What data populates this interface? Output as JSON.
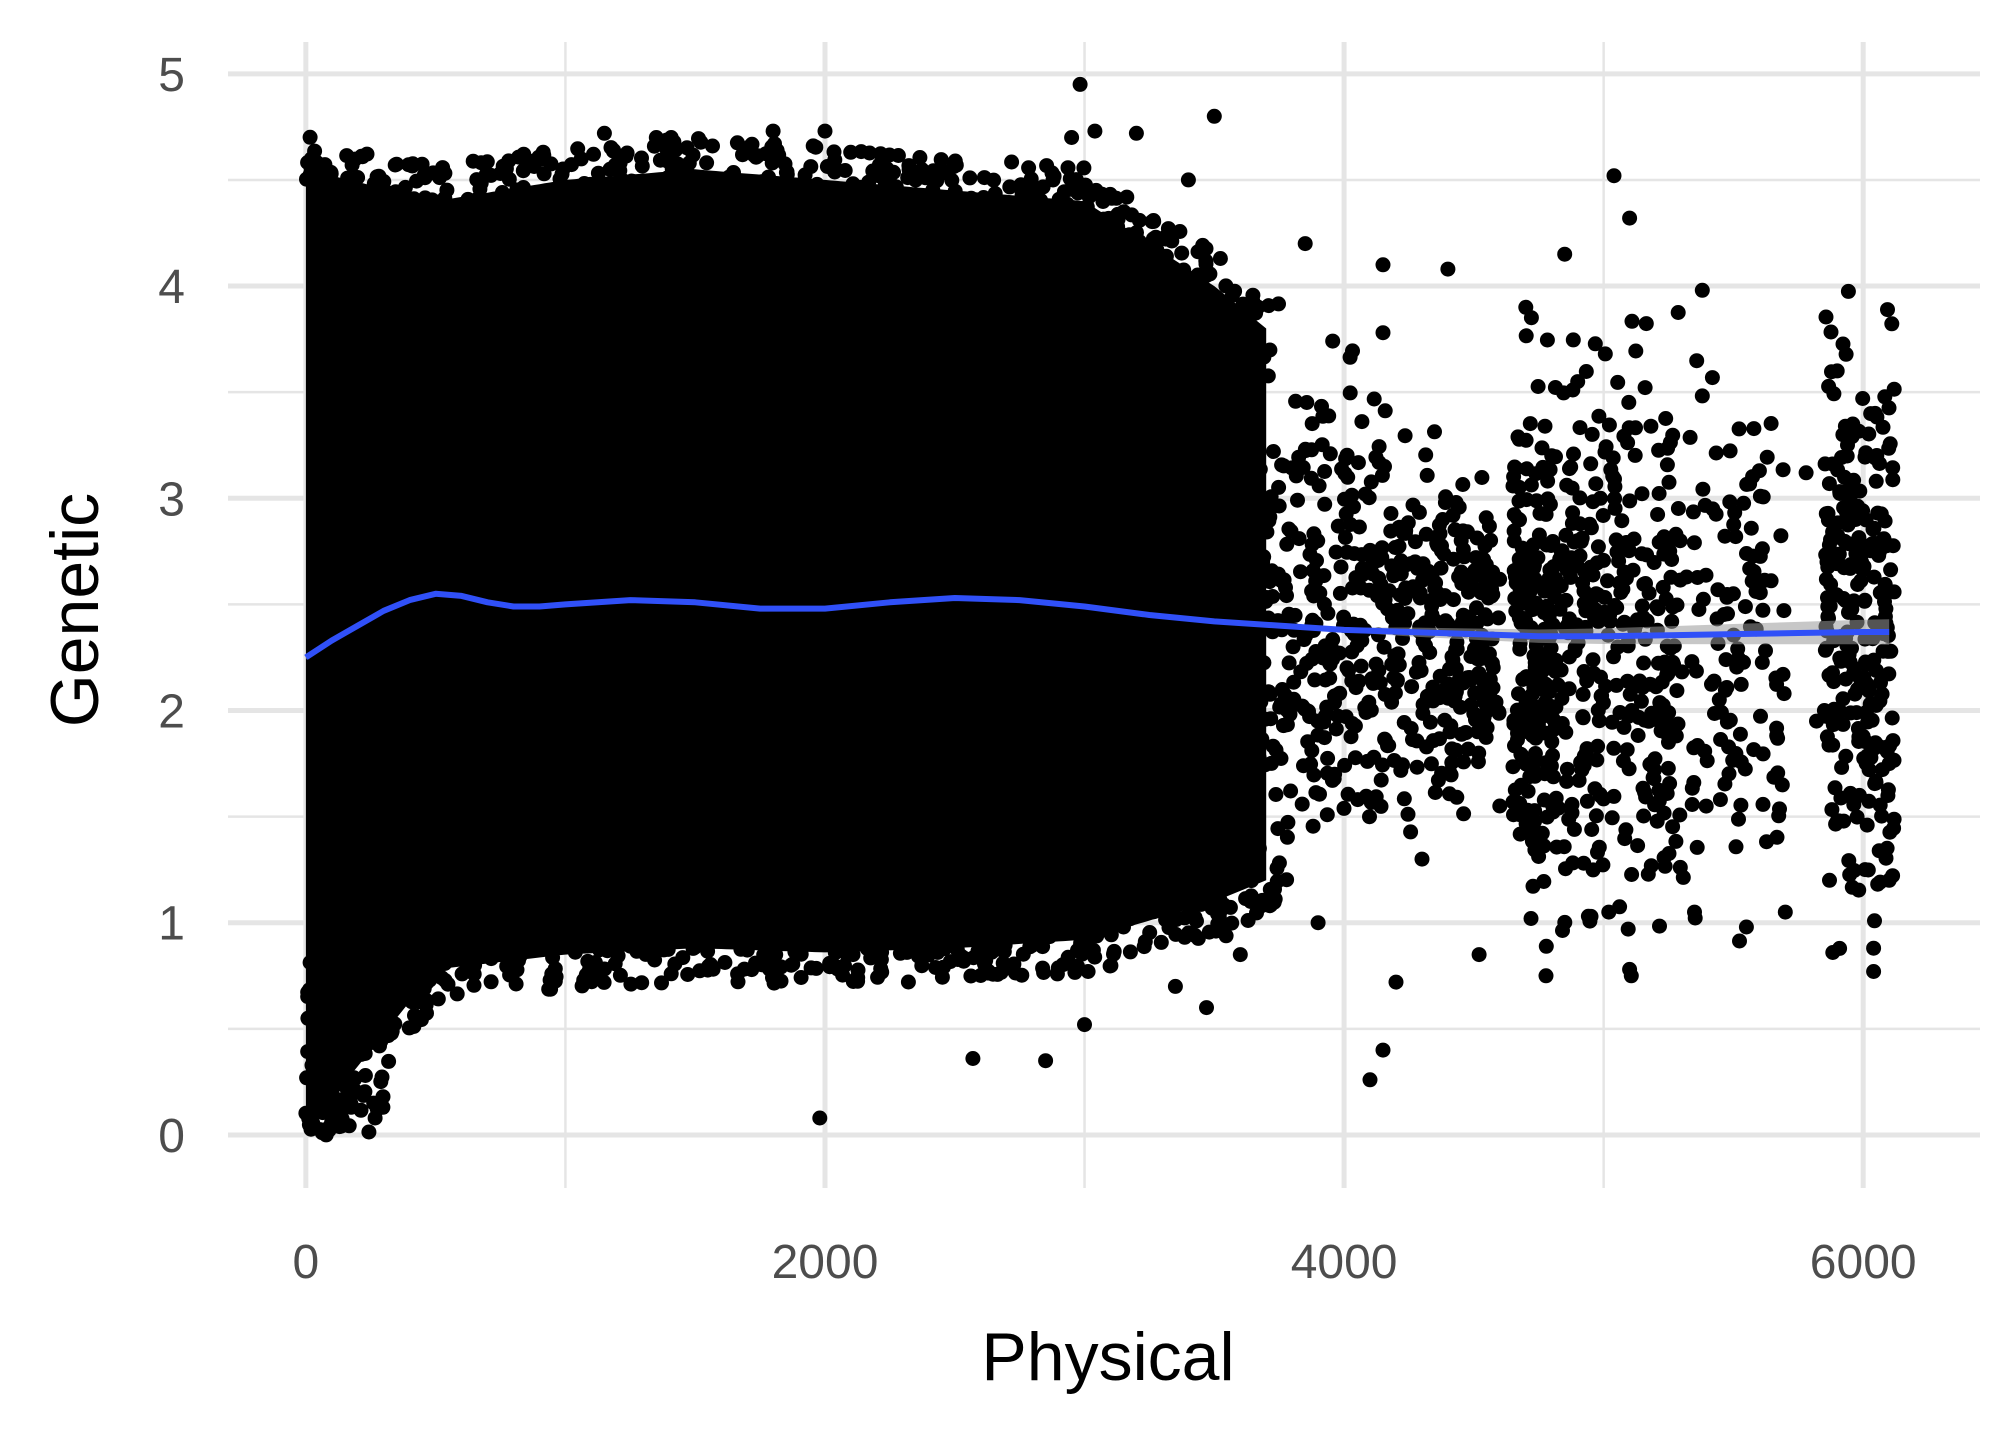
{
  "chart_data": {
    "type": "scatter",
    "title": "",
    "xlabel": "Physical",
    "ylabel": "Genetic",
    "xlim": [
      -300,
      6450
    ],
    "ylim": [
      -0.25,
      5.15
    ],
    "x_ticks": [
      0,
      2000,
      4000,
      6000
    ],
    "x_tick_labels": [
      "0",
      "2000",
      "4000",
      "6000"
    ],
    "y_ticks": [
      0,
      1,
      2,
      3,
      4,
      5
    ],
    "y_tick_labels": [
      "0",
      "1",
      "2",
      "3",
      "4",
      "5"
    ],
    "grid": true,
    "colors": {
      "points": "#000000",
      "smooth_line": "#3050f8",
      "ribbon": "#999999",
      "grid": "#e5e5e5"
    },
    "smooth_line": {
      "x": [
        0,
        100,
        200,
        300,
        400,
        500,
        600,
        700,
        800,
        900,
        1000,
        1250,
        1500,
        1750,
        2000,
        2250,
        2500,
        2750,
        3000,
        3250,
        3500,
        3750,
        4000,
        4250,
        4500,
        4750,
        5000,
        5250,
        5500,
        5750,
        6000,
        6100
      ],
      "y": [
        2.25,
        2.33,
        2.4,
        2.47,
        2.52,
        2.55,
        2.54,
        2.51,
        2.49,
        2.49,
        2.5,
        2.52,
        2.51,
        2.48,
        2.48,
        2.51,
        2.53,
        2.52,
        2.49,
        2.45,
        2.42,
        2.4,
        2.38,
        2.37,
        2.36,
        2.35,
        2.35,
        2.355,
        2.36,
        2.365,
        2.37,
        2.37
      ]
    },
    "dense_band": {
      "x": [
        0,
        500,
        1000,
        1500,
        2000,
        2500,
        3000,
        3500,
        3700
      ],
      "y_low": [
        0.02,
        0.78,
        0.85,
        0.88,
        0.86,
        0.88,
        0.92,
        1.1,
        1.2
      ],
      "y_high": [
        4.55,
        4.4,
        4.5,
        4.55,
        4.5,
        4.45,
        4.4,
        4.0,
        3.8
      ]
    },
    "outlier_points": [
      [
        2983,
        4.95
      ],
      [
        3500,
        4.8
      ],
      [
        1800,
        4.73
      ],
      [
        2000,
        4.73
      ],
      [
        1150,
        4.72
      ],
      [
        3040,
        4.73
      ],
      [
        1350,
        4.7
      ],
      [
        2950,
        4.7
      ],
      [
        3200,
        4.72
      ],
      [
        5040,
        4.52
      ],
      [
        3850,
        4.2
      ],
      [
        4150,
        4.1
      ],
      [
        4400,
        4.08
      ],
      [
        4150,
        3.78
      ],
      [
        5100,
        4.32
      ],
      [
        4850,
        4.15
      ],
      [
        4700,
        3.9
      ],
      [
        5380,
        3.98
      ],
      [
        5900,
        3.6
      ],
      [
        3400,
        4.5
      ],
      [
        4900,
        3.55
      ],
      [
        5960,
        3.35
      ],
      [
        6050,
        3.08
      ],
      [
        5780,
        3.12
      ],
      [
        4100,
        0.26
      ],
      [
        4150,
        0.4
      ],
      [
        1980,
        0.08
      ],
      [
        2570,
        0.36
      ],
      [
        2850,
        0.35
      ],
      [
        3000,
        0.52
      ],
      [
        4200,
        0.72
      ],
      [
        5100,
        0.78
      ],
      [
        5550,
        0.98
      ],
      [
        6040,
        0.88
      ],
      [
        6040,
        0.77
      ],
      [
        3470,
        0.6
      ],
      [
        3350,
        0.7
      ],
      [
        4520,
        0.85
      ],
      [
        4720,
        1.02
      ],
      [
        5350,
        1.05
      ],
      [
        5020,
        1.05
      ],
      [
        6100,
        1.2
      ],
      [
        3900,
        1.0
      ],
      [
        3600,
        0.85
      ],
      [
        4300,
        1.3
      ],
      [
        4600,
        1.55
      ],
      [
        5250,
        1.85
      ],
      [
        5450,
        1.58
      ],
      [
        5700,
        1.05
      ],
      [
        5870,
        1.2
      ],
      [
        5820,
        1.95
      ],
      [
        6100,
        1.75
      ],
      [
        4380,
        2.9
      ],
      [
        5420,
        2.95
      ],
      [
        5600,
        3.13
      ],
      [
        4800,
        3.2
      ],
      [
        4750,
        2.6
      ],
      [
        5500,
        2.55
      ]
    ]
  }
}
